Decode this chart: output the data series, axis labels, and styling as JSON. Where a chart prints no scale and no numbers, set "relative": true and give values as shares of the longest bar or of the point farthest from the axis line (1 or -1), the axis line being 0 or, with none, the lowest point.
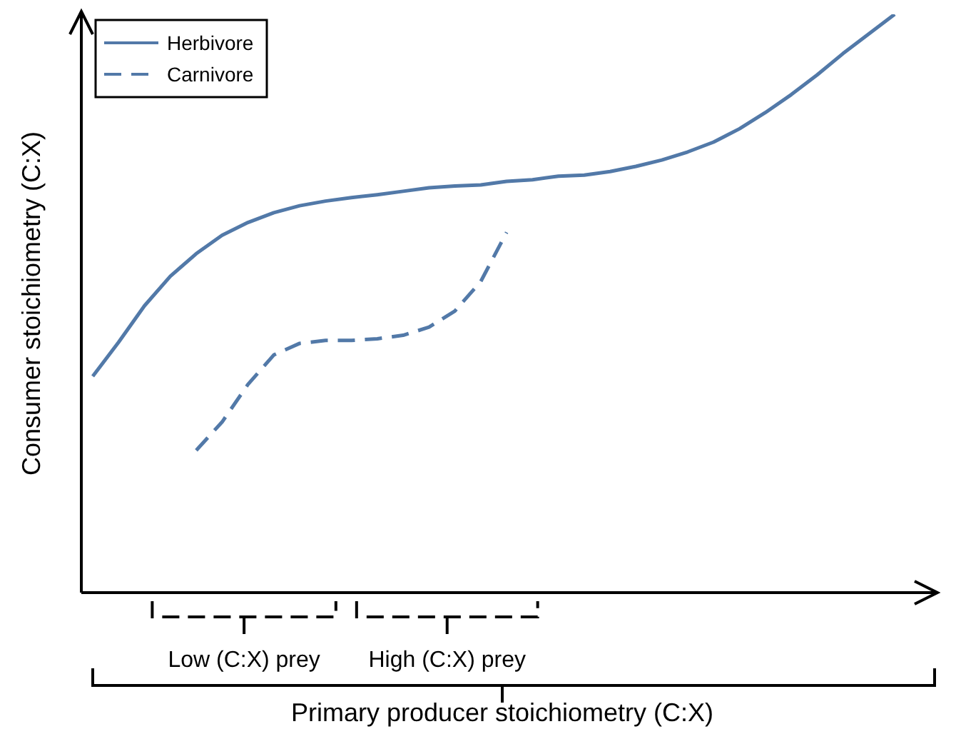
{
  "chart_data": {
    "type": "line",
    "relative": true,
    "xlabel": "Primary producer stoichiometry (C:X)",
    "ylabel": "Consumer stoichiometry (C:X)",
    "annotations": [
      "Low (C:X) prey",
      "High (C:X) prey"
    ],
    "categories": [
      null,
      null,
      null,
      null,
      null,
      null,
      null,
      null,
      null,
      null,
      null,
      null,
      null,
      null,
      null,
      null,
      null,
      null,
      null,
      null,
      null,
      null,
      null,
      null,
      null,
      null,
      null,
      null,
      null,
      null,
      null,
      null
    ],
    "series": [
      {
        "name": "Herbivore",
        "color": "#5279a8",
        "line_style": "solid",
        "values": [
          0.374,
          0.433,
          0.496,
          0.547,
          0.586,
          0.618,
          0.64,
          0.657,
          0.669,
          0.677,
          0.683,
          0.688,
          0.694,
          0.7,
          0.703,
          0.705,
          0.711,
          0.714,
          0.72,
          0.722,
          0.728,
          0.737,
          0.748,
          0.762,
          0.779,
          0.802,
          0.83,
          0.861,
          0.895,
          0.932,
          0.966,
          1
        ]
      },
      {
        "name": "Carnivore",
        "color": "#5279a8",
        "line_style": "dashed",
        "values": [
          null,
          null,
          null,
          null,
          0.246,
          0.295,
          0.36,
          0.411,
          0.431,
          0.436,
          0.436,
          0.439,
          0.445,
          0.459,
          0.487,
          0.538,
          0.623,
          null,
          null,
          null,
          null,
          null,
          null,
          null,
          null,
          null,
          null,
          null,
          null,
          null,
          null,
          null
        ]
      }
    ],
    "marker": "none",
    "legend": "top left",
    "grid": false
  }
}
